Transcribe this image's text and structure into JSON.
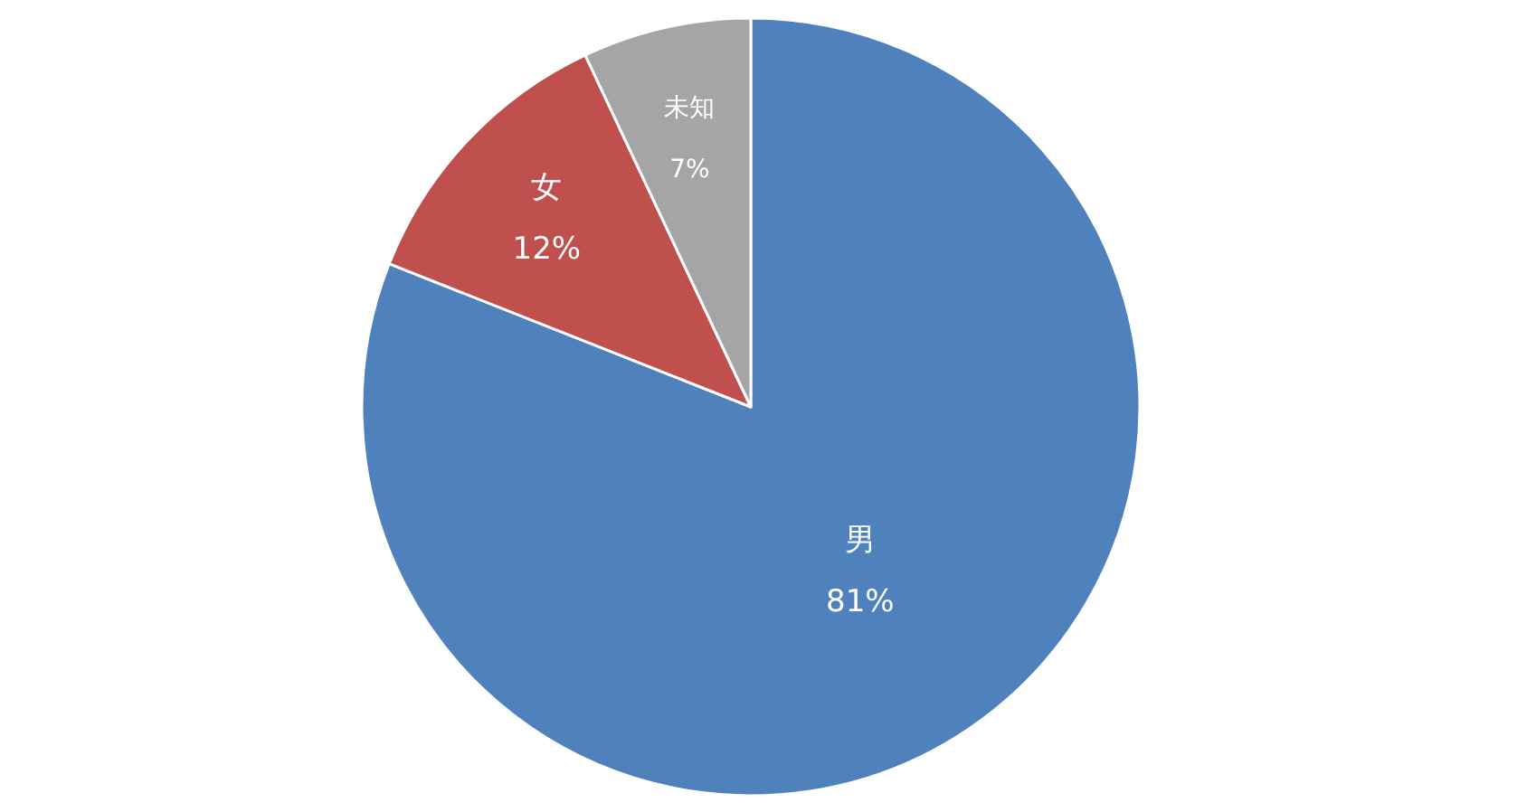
{
  "chart_data": {
    "type": "pie",
    "categories": [
      "男",
      "女",
      "未知"
    ],
    "values": [
      81,
      12,
      7
    ],
    "colors": [
      "#4f81bd",
      "#c0504d",
      "#a5a5a5"
    ],
    "value_labels": [
      "81%",
      "12%",
      "7%"
    ]
  }
}
